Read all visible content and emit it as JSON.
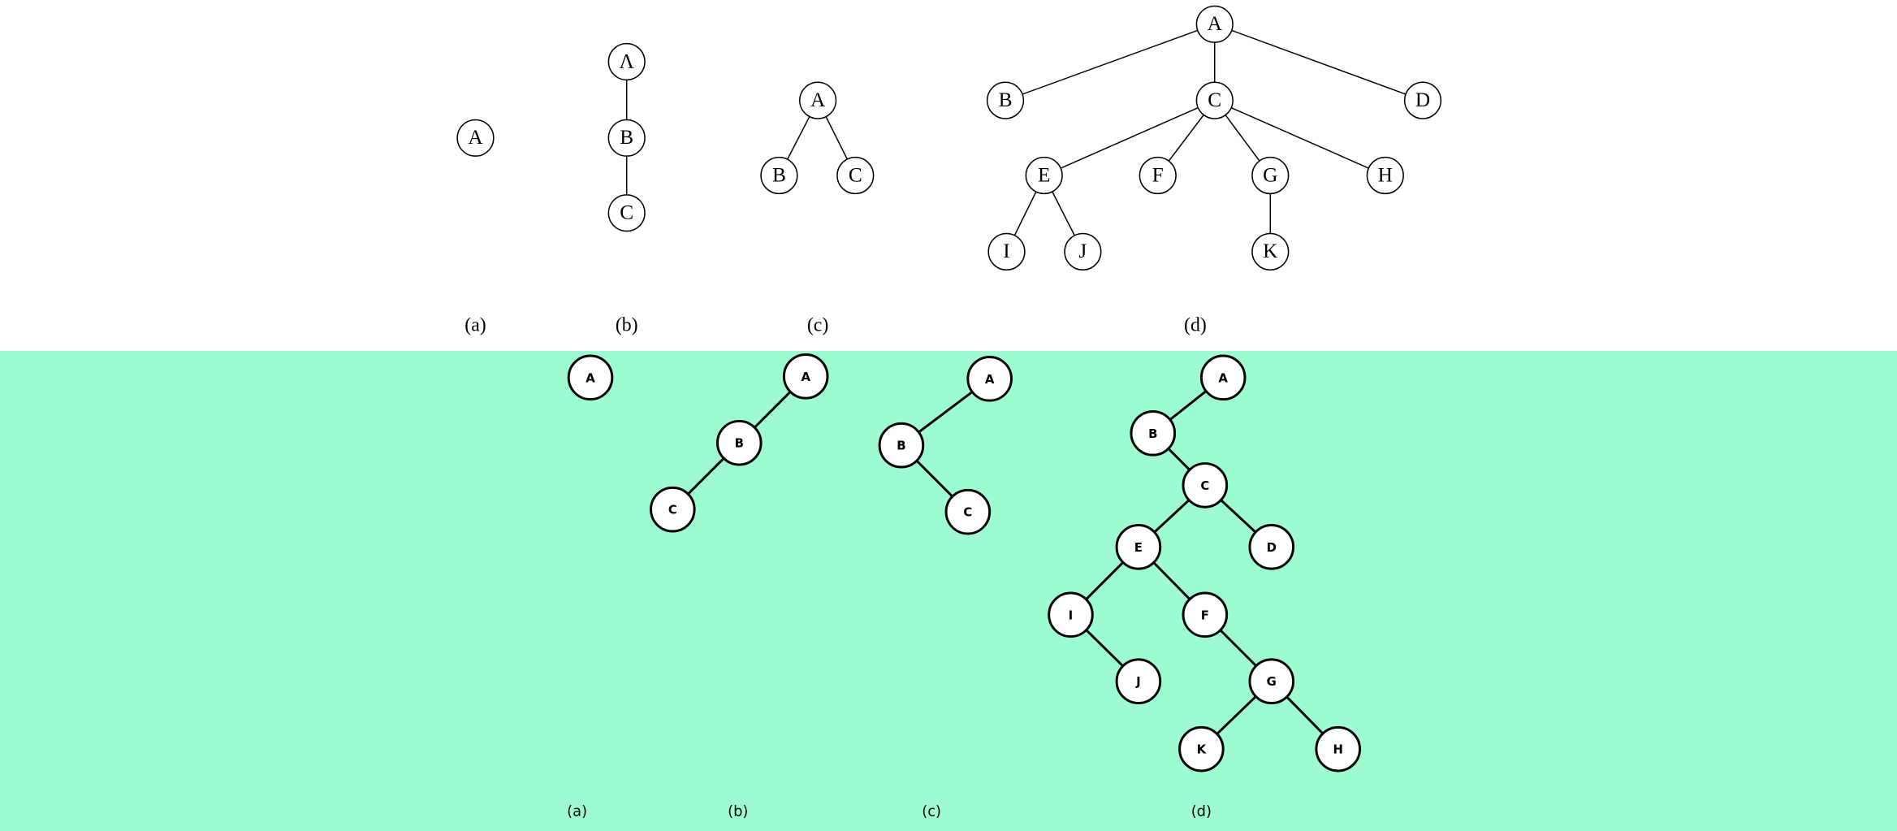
{
  "top": {
    "trees": [
      {
        "nodes": [
          {
            "label": "A"
          }
        ],
        "caption": "(a)"
      },
      {
        "nodes": [
          {
            "label": "Λ"
          },
          {
            "label": "B"
          },
          {
            "label": "C"
          }
        ],
        "caption": "(b)"
      },
      {
        "nodes": [
          {
            "label": "A"
          },
          {
            "label": "B"
          },
          {
            "label": "C"
          }
        ],
        "caption": "(c)"
      },
      {
        "nodes": [
          {
            "label": "A"
          },
          {
            "label": "B"
          },
          {
            "label": "C"
          },
          {
            "label": "D"
          },
          {
            "label": "E"
          },
          {
            "label": "F"
          },
          {
            "label": "G"
          },
          {
            "label": "H"
          },
          {
            "label": "I"
          },
          {
            "label": "J"
          },
          {
            "label": "K"
          }
        ],
        "caption": "(d)"
      }
    ]
  },
  "bottom": {
    "trees": [
      {
        "nodes": [
          {
            "label": "A"
          }
        ],
        "caption": "(a)"
      },
      {
        "nodes": [
          {
            "label": "A"
          },
          {
            "label": "B"
          },
          {
            "label": "C"
          }
        ],
        "caption": "(b)"
      },
      {
        "nodes": [
          {
            "label": "A"
          },
          {
            "label": "B"
          },
          {
            "label": "C"
          }
        ],
        "caption": "(c)"
      },
      {
        "nodes": [
          {
            "label": "A"
          },
          {
            "label": "B"
          },
          {
            "label": "C"
          },
          {
            "label": "D"
          },
          {
            "label": "E"
          },
          {
            "label": "I"
          },
          {
            "label": "J"
          },
          {
            "label": "F"
          },
          {
            "label": "G"
          },
          {
            "label": "K"
          },
          {
            "label": "H"
          }
        ],
        "caption": "(d)"
      }
    ]
  }
}
